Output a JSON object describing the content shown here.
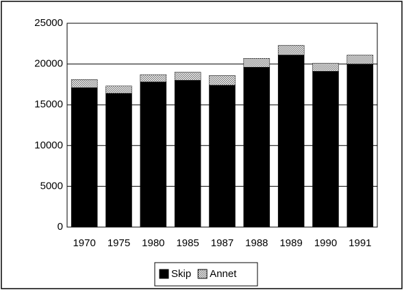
{
  "chart_data": {
    "type": "stacked_bar",
    "categories": [
      "1970",
      "1975",
      "1980",
      "1985",
      "1987",
      "1988",
      "1989",
      "1990",
      "1991"
    ],
    "series": [
      {
        "name": "Skip",
        "color": "#000000",
        "values": [
          17100,
          16400,
          17800,
          18000,
          17400,
          19600,
          21100,
          19100,
          20000
        ]
      },
      {
        "name": "Annet",
        "color": "#777777",
        "values": [
          1000,
          900,
          900,
          1000,
          1200,
          1100,
          1200,
          1000,
          1100
        ]
      }
    ],
    "ylim": [
      0,
      25000
    ],
    "yticks": [
      0,
      5000,
      10000,
      15000,
      20000,
      25000
    ],
    "grid": true,
    "legend": "bottom"
  }
}
